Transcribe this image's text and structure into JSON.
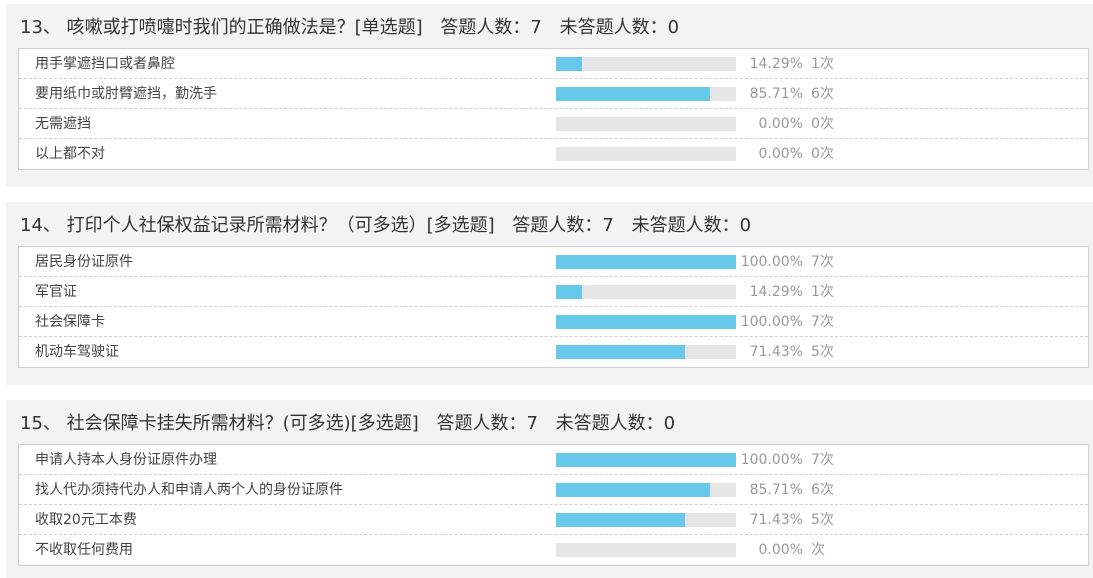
{
  "questions": [
    {
      "number": "13、",
      "text": "咳嗽或打喷嚏时我们的正确做法是？[单选题]",
      "answered": "答题人数：7",
      "unanswered": "未答题人数：0",
      "options": [
        {
          "label": "用手掌遮挡口或者鼻腔",
          "percent": "14.29%",
          "count": "1次",
          "fraction": 0.1429
        },
        {
          "label": "要用纸巾或肘臂遮挡，勤洗手",
          "percent": "85.71%",
          "count": "6次",
          "fraction": 0.8571
        },
        {
          "label": "无需遮挡",
          "percent": "0.00%",
          "count": "0次",
          "fraction": 0
        },
        {
          "label": "以上都不对",
          "percent": "0.00%",
          "count": "0次",
          "fraction": 0
        }
      ]
    },
    {
      "number": "14、",
      "text": "打印个人社保权益记录所需材料？（可多选）[多选题]",
      "answered": "答题人数：7",
      "unanswered": "未答题人数：0",
      "options": [
        {
          "label": "居民身份证原件",
          "percent": "100.00%",
          "count": "7次",
          "fraction": 1.0
        },
        {
          "label": "军官证",
          "percent": "14.29%",
          "count": "1次",
          "fraction": 0.1429
        },
        {
          "label": "社会保障卡",
          "percent": "100.00%",
          "count": "7次",
          "fraction": 1.0
        },
        {
          "label": "机动车驾驶证",
          "percent": "71.43%",
          "count": "5次",
          "fraction": 0.7143
        }
      ]
    },
    {
      "number": "15、",
      "text": "社会保障卡挂失所需材料？(可多选)[多选题]",
      "answered": "答题人数：7",
      "unanswered": "未答题人数：0",
      "options": [
        {
          "label": "申请人持本人身份证原件办理",
          "percent": "100.00%",
          "count": "7次",
          "fraction": 1.0
        },
        {
          "label": "找人代办须持代办人和申请人两个人的身份证原件",
          "percent": "85.71%",
          "count": "6次",
          "fraction": 0.8571
        },
        {
          "label": "收取20元工本费",
          "percent": "71.43%",
          "count": "5次",
          "fraction": 0.7143
        },
        {
          "label": "不收取任何费用",
          "percent": "0.00%",
          "count": "次",
          "fraction": 0
        }
      ]
    }
  ],
  "colors": {
    "bar_fill": "#66c9ea",
    "bar_track": "#e6e6e6",
    "panel_bg": "#f3f3f3"
  }
}
